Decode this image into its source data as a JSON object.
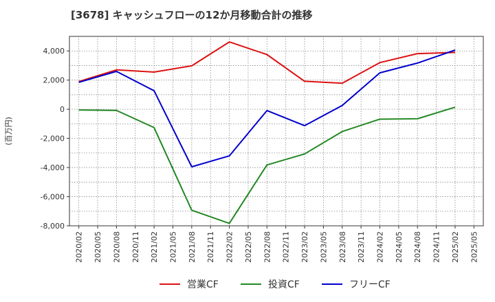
{
  "chart_data": {
    "type": "line",
    "title": "[3678]  キャッシュフローの12か月移動合計の推移",
    "ylabel": "(百万円)",
    "xlabel": "",
    "ylim": [
      -8000,
      5000
    ],
    "yticks": [
      -8000,
      -6000,
      -4000,
      -2000,
      0,
      2000,
      4000
    ],
    "ytick_labels": [
      "-8,000",
      "-6,000",
      "-4,000",
      "-2,000",
      "0",
      "2,000",
      "4,000"
    ],
    "categories": [
      "2020/02",
      "2020/05",
      "2020/08",
      "2020/11",
      "2021/02",
      "2021/05",
      "2021/08",
      "2021/11",
      "2022/02",
      "2022/05",
      "2022/08",
      "2022/11",
      "2023/02",
      "2023/05",
      "2023/08",
      "2023/11",
      "2024/02",
      "2024/05",
      "2024/08",
      "2024/11",
      "2025/02",
      "2025/05"
    ],
    "series": [
      {
        "name": "営業CF",
        "color": "#dd1111",
        "values": [
          1900,
          null,
          2700,
          null,
          2550,
          null,
          2980,
          null,
          4620,
          null,
          3750,
          null,
          1920,
          null,
          1790,
          null,
          3200,
          null,
          3820,
          null,
          3900,
          null
        ]
      },
      {
        "name": "投資CF",
        "color": "#228822",
        "values": [
          -50,
          null,
          -80,
          null,
          -1260,
          null,
          -6930,
          null,
          -7830,
          null,
          -3820,
          null,
          -3070,
          null,
          -1530,
          null,
          -680,
          null,
          -650,
          null,
          140,
          null
        ]
      },
      {
        "name": "フリーCF",
        "color": "#0000cc",
        "values": [
          1850,
          null,
          2600,
          null,
          1270,
          null,
          -3950,
          null,
          -3200,
          null,
          -90,
          null,
          -1130,
          null,
          260,
          null,
          2500,
          null,
          3170,
          null,
          4060,
          null
        ]
      }
    ],
    "grid": true,
    "legend_position": "bottom-center"
  }
}
